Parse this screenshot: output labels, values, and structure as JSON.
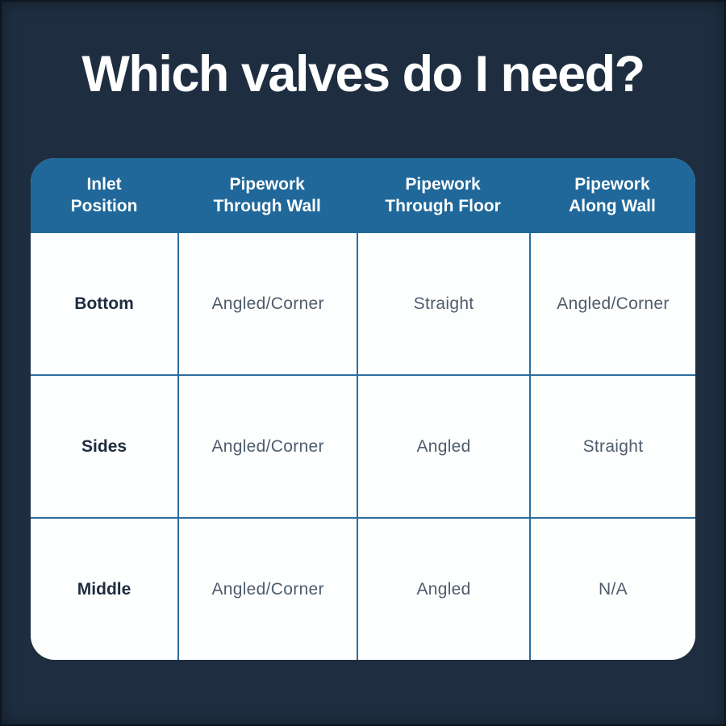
{
  "page": {
    "title": "Which valves do I need?"
  },
  "colors": {
    "background": "#1E2E40",
    "header_bg": "#20689A",
    "grid_line": "#2A6E9F",
    "card_bg": "#FDFEFE",
    "title_text": "#FFFFFF",
    "header_text": "#FFFFFF",
    "row_label_text": "#1D2C40",
    "cell_text": "#4E5C6C"
  },
  "table": {
    "headers": [
      "Inlet\nPosition",
      "Pipework\nThrough Wall",
      "Pipework\nThrough Floor",
      "Pipework\nAlong Wall"
    ],
    "rows": [
      {
        "label": "Bottom",
        "values": [
          "Angled/Corner",
          "Straight",
          "Angled/Corner"
        ]
      },
      {
        "label": "Sides",
        "values": [
          "Angled/Corner",
          "Angled",
          "Straight"
        ]
      },
      {
        "label": "Middle",
        "values": [
          "Angled/Corner",
          "Angled",
          "N/A"
        ]
      }
    ]
  },
  "chart_data": {
    "type": "table",
    "title": "Which valves do I need?",
    "columns": [
      "Inlet Position",
      "Pipework Through Wall",
      "Pipework Through Floor",
      "Pipework Along Wall"
    ],
    "rows": [
      [
        "Bottom",
        "Angled/Corner",
        "Straight",
        "Angled/Corner"
      ],
      [
        "Sides",
        "Angled/Corner",
        "Angled",
        "Straight"
      ],
      [
        "Middle",
        "Angled/Corner",
        "Angled",
        "N/A"
      ]
    ]
  }
}
